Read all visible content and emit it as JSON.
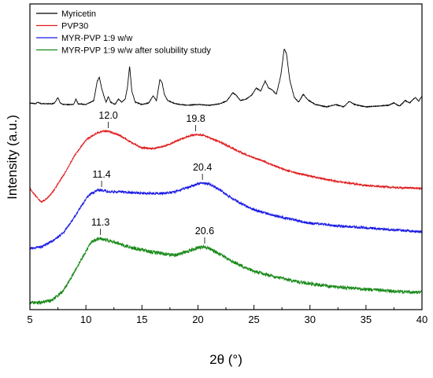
{
  "chart_data": {
    "type": "line",
    "xlabel": "2θ (°)",
    "ylabel": "Intensity (a.u.)",
    "xlim": [
      5,
      40
    ],
    "xticks": [
      "5",
      "10",
      "15",
      "20",
      "25",
      "30",
      "35",
      "40"
    ],
    "yticks_shown": false,
    "legend_position": "top-left",
    "series": [
      {
        "name": "Myricetin",
        "color": "#000000",
        "noise": 0.45,
        "points": [
          [
            5,
            131
          ],
          [
            5.5,
            132
          ],
          [
            5.7,
            130
          ],
          [
            6,
            132
          ],
          [
            7,
            132
          ],
          [
            7.2,
            131
          ],
          [
            7.5,
            124
          ],
          [
            7.7,
            131
          ],
          [
            8,
            133
          ],
          [
            8.9,
            133
          ],
          [
            9.1,
            126
          ],
          [
            9.3,
            132
          ],
          [
            10,
            133
          ],
          [
            10.7,
            128
          ],
          [
            11.0,
            104
          ],
          [
            11.2,
            98
          ],
          [
            11.4,
            112
          ],
          [
            11.6,
            122
          ],
          [
            11.8,
            130
          ],
          [
            12.0,
            123
          ],
          [
            12.2,
            130
          ],
          [
            12.6,
            133
          ],
          [
            12.9,
            126
          ],
          [
            13.2,
            130
          ],
          [
            13.5,
            126
          ],
          [
            13.7,
            112
          ],
          [
            13.9,
            84
          ],
          [
            14.1,
            116
          ],
          [
            14.4,
            130
          ],
          [
            15,
            133
          ],
          [
            15.6,
            131
          ],
          [
            16.0,
            122
          ],
          [
            16.3,
            128
          ],
          [
            16.6,
            101
          ],
          [
            16.8,
            105
          ],
          [
            17.0,
            120
          ],
          [
            17.3,
            128
          ],
          [
            18,
            132
          ],
          [
            19,
            134
          ],
          [
            20,
            133
          ],
          [
            21,
            134
          ],
          [
            22,
            132
          ],
          [
            22.6,
            128
          ],
          [
            23.1,
            118
          ],
          [
            23.4,
            121
          ],
          [
            23.8,
            128
          ],
          [
            24.3,
            126
          ],
          [
            24.8,
            121
          ],
          [
            25.2,
            112
          ],
          [
            25.6,
            116
          ],
          [
            26.0,
            103
          ],
          [
            26.3,
            112
          ],
          [
            26.6,
            114
          ],
          [
            27.0,
            120
          ],
          [
            27.4,
            96
          ],
          [
            27.7,
            62
          ],
          [
            27.9,
            68
          ],
          [
            28.2,
            102
          ],
          [
            28.6,
            124
          ],
          [
            29.0,
            130
          ],
          [
            29.4,
            120
          ],
          [
            29.8,
            127
          ],
          [
            30.5,
            133
          ],
          [
            31.5,
            136
          ],
          [
            32.3,
            133
          ],
          [
            33.0,
            136
          ],
          [
            33.5,
            129
          ],
          [
            34,
            133
          ],
          [
            35,
            136
          ],
          [
            36,
            135
          ],
          [
            37,
            134
          ],
          [
            37.5,
            131
          ],
          [
            38.0,
            135
          ],
          [
            38.5,
            128
          ],
          [
            38.9,
            131
          ],
          [
            39.4,
            124
          ],
          [
            39.7,
            129
          ],
          [
            40,
            122
          ]
        ]
      },
      {
        "name": "PVP30",
        "color": "#e0191b",
        "noise": 1.1,
        "points": [
          [
            5,
            240
          ],
          [
            5.5,
            249
          ],
          [
            6,
            257
          ],
          [
            6.5,
            253
          ],
          [
            7,
            245
          ],
          [
            7.5,
            234
          ],
          [
            8,
            223
          ],
          [
            9,
            198
          ],
          [
            10,
            178
          ],
          [
            11,
            169
          ],
          [
            11.5,
            167
          ],
          [
            12,
            167
          ],
          [
            13,
            172
          ],
          [
            14,
            181
          ],
          [
            15,
            188
          ],
          [
            16,
            189
          ],
          [
            17,
            186
          ],
          [
            18,
            180
          ],
          [
            19,
            174
          ],
          [
            19.8,
            171
          ],
          [
            20.5,
            172
          ],
          [
            21,
            175
          ],
          [
            22,
            181
          ],
          [
            23,
            188
          ],
          [
            24,
            195
          ],
          [
            25,
            201
          ],
          [
            26,
            206
          ],
          [
            27,
            212
          ],
          [
            28,
            217
          ],
          [
            29,
            221
          ],
          [
            30,
            224
          ],
          [
            31,
            227
          ],
          [
            32,
            230
          ],
          [
            33,
            232
          ],
          [
            34,
            234
          ],
          [
            35,
            236
          ],
          [
            36,
            237
          ],
          [
            37,
            238
          ],
          [
            38,
            239
          ],
          [
            39,
            239
          ],
          [
            40,
            240
          ]
        ]
      },
      {
        "name": "MYR-PVP 1:9 w/w",
        "color": "#1a1ae6",
        "noise": 1.6,
        "points": [
          [
            5,
            316
          ],
          [
            6,
            314
          ],
          [
            7,
            307
          ],
          [
            8,
            296
          ],
          [
            9,
            276
          ],
          [
            10,
            253
          ],
          [
            10.5,
            246
          ],
          [
            11,
            242
          ],
          [
            11.4,
            242
          ],
          [
            12,
            244
          ],
          [
            13,
            244
          ],
          [
            14,
            245
          ],
          [
            15,
            246
          ],
          [
            16,
            246
          ],
          [
            17,
            246
          ],
          [
            18,
            244
          ],
          [
            19,
            239
          ],
          [
            20,
            234
          ],
          [
            20.4,
            233
          ],
          [
            21,
            234
          ],
          [
            22,
            242
          ],
          [
            23,
            252
          ],
          [
            24,
            260
          ],
          [
            25,
            267
          ],
          [
            26,
            271
          ],
          [
            27,
            275
          ],
          [
            28,
            278
          ],
          [
            29,
            281
          ],
          [
            30,
            284
          ],
          [
            31,
            285
          ],
          [
            32,
            287
          ],
          [
            33,
            288
          ],
          [
            34,
            289
          ],
          [
            35,
            290
          ],
          [
            36,
            291
          ],
          [
            37,
            292
          ],
          [
            38,
            293
          ],
          [
            39,
            294
          ],
          [
            40,
            295
          ]
        ]
      },
      {
        "name": "MYR-PVP 1:9 w/w after solubility study",
        "color": "#1a8a1a",
        "noise": 2.2,
        "points": [
          [
            5,
            385
          ],
          [
            6,
            385
          ],
          [
            7,
            382
          ],
          [
            8,
            370
          ],
          [
            9,
            345
          ],
          [
            10,
            320
          ],
          [
            10.5,
            308
          ],
          [
            11,
            304
          ],
          [
            11.3,
            303
          ],
          [
            12,
            306
          ],
          [
            13,
            310
          ],
          [
            14,
            315
          ],
          [
            15,
            318
          ],
          [
            16,
            321
          ],
          [
            17,
            323
          ],
          [
            18,
            325
          ],
          [
            19,
            320
          ],
          [
            20,
            315
          ],
          [
            20.6,
            314
          ],
          [
            21,
            316
          ],
          [
            22,
            324
          ],
          [
            23,
            332
          ],
          [
            24,
            339
          ],
          [
            25,
            345
          ],
          [
            26,
            349
          ],
          [
            27,
            353
          ],
          [
            28,
            356
          ],
          [
            29,
            359
          ],
          [
            30,
            361
          ],
          [
            31,
            363
          ],
          [
            32,
            365
          ],
          [
            33,
            366
          ],
          [
            34,
            367
          ],
          [
            35,
            368
          ],
          [
            36,
            369
          ],
          [
            37,
            370
          ],
          [
            38,
            371
          ],
          [
            39,
            372
          ],
          [
            40,
            372
          ]
        ]
      }
    ],
    "annotations": [
      {
        "text": "12.0",
        "x": 12.0,
        "series": 1
      },
      {
        "text": "19.8",
        "x": 19.8,
        "series": 1
      },
      {
        "text": "11.4",
        "x": 11.4,
        "series": 2
      },
      {
        "text": "20.4",
        "x": 20.4,
        "series": 2
      },
      {
        "text": "11.3",
        "x": 11.3,
        "series": 3
      },
      {
        "text": "20.6",
        "x": 20.6,
        "series": 3
      }
    ]
  }
}
